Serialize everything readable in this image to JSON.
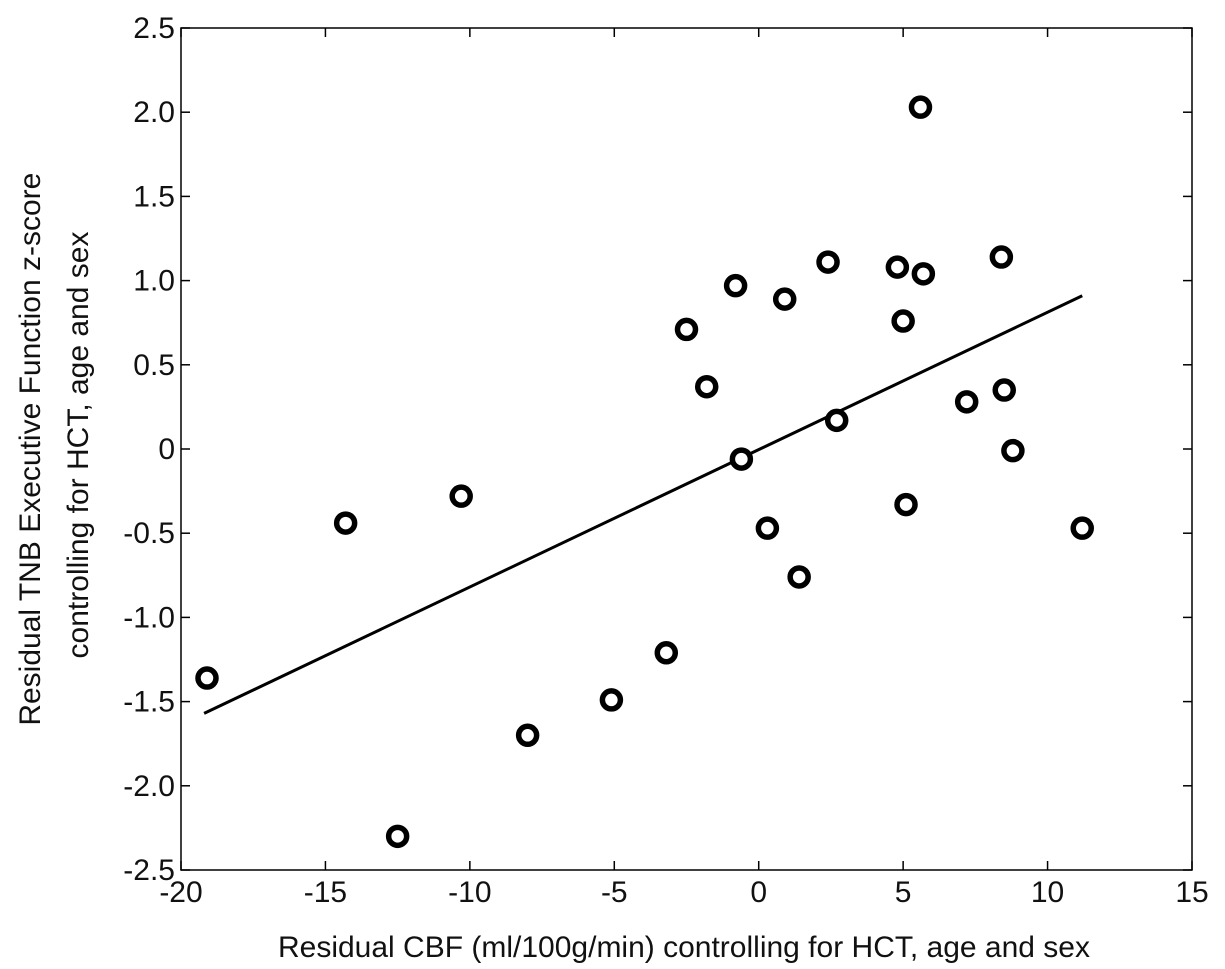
{
  "chart_data": {
    "type": "scatter",
    "title": "",
    "xlabel": "Residual CBF (ml/100g/min) controlling for HCT, age and sex",
    "ylabel_lines": [
      "Residual TNB Executive Function z-score",
      "controlling for HCT, age and sex"
    ],
    "xlim": [
      -20,
      15
    ],
    "ylim": [
      -2.5,
      2.5
    ],
    "x_ticks": [
      -20,
      -15,
      -10,
      -5,
      0,
      5,
      10,
      15
    ],
    "x_tick_labels": [
      "-20",
      "-15",
      "-10",
      "-5",
      "0",
      "5",
      "10",
      "15"
    ],
    "y_ticks": [
      2.5,
      2.0,
      1.5,
      1.0,
      0.5,
      0,
      -0.5,
      -1.0,
      -1.5,
      -2.0,
      -2.5
    ],
    "y_tick_labels": [
      "2.5",
      "2.0",
      "1.5",
      "1.0",
      "0.5",
      "0",
      "-0.5",
      "-1.0",
      "-1.5",
      "-2.0",
      "-2.5"
    ],
    "grid": false,
    "legend": "none",
    "marker": "open-circle",
    "marker_color": "#000000",
    "points": [
      {
        "x": -19.1,
        "y": -1.36
      },
      {
        "x": -14.3,
        "y": -0.44
      },
      {
        "x": -12.5,
        "y": -2.3
      },
      {
        "x": -10.3,
        "y": -0.28
      },
      {
        "x": -8.0,
        "y": -1.7
      },
      {
        "x": -5.1,
        "y": -1.49
      },
      {
        "x": -3.2,
        "y": -1.21
      },
      {
        "x": -2.5,
        "y": 0.71
      },
      {
        "x": -1.8,
        "y": 0.37
      },
      {
        "x": -0.8,
        "y": 0.97
      },
      {
        "x": -0.6,
        "y": -0.06
      },
      {
        "x": 0.3,
        "y": -0.47
      },
      {
        "x": 0.9,
        "y": 0.89
      },
      {
        "x": 1.4,
        "y": -0.76
      },
      {
        "x": 2.4,
        "y": 1.11
      },
      {
        "x": 2.7,
        "y": 0.17
      },
      {
        "x": 4.8,
        "y": 1.08
      },
      {
        "x": 5.0,
        "y": 0.76
      },
      {
        "x": 5.1,
        "y": -0.33
      },
      {
        "x": 5.6,
        "y": 2.03
      },
      {
        "x": 5.7,
        "y": 1.04
      },
      {
        "x": 7.2,
        "y": 0.28
      },
      {
        "x": 8.4,
        "y": 1.14
      },
      {
        "x": 8.5,
        "y": 0.35
      },
      {
        "x": 8.8,
        "y": -0.01
      },
      {
        "x": 11.2,
        "y": -0.47
      }
    ],
    "fit_line": {
      "x": [
        -19.2,
        11.2
      ],
      "y": [
        -1.57,
        0.91
      ]
    }
  }
}
